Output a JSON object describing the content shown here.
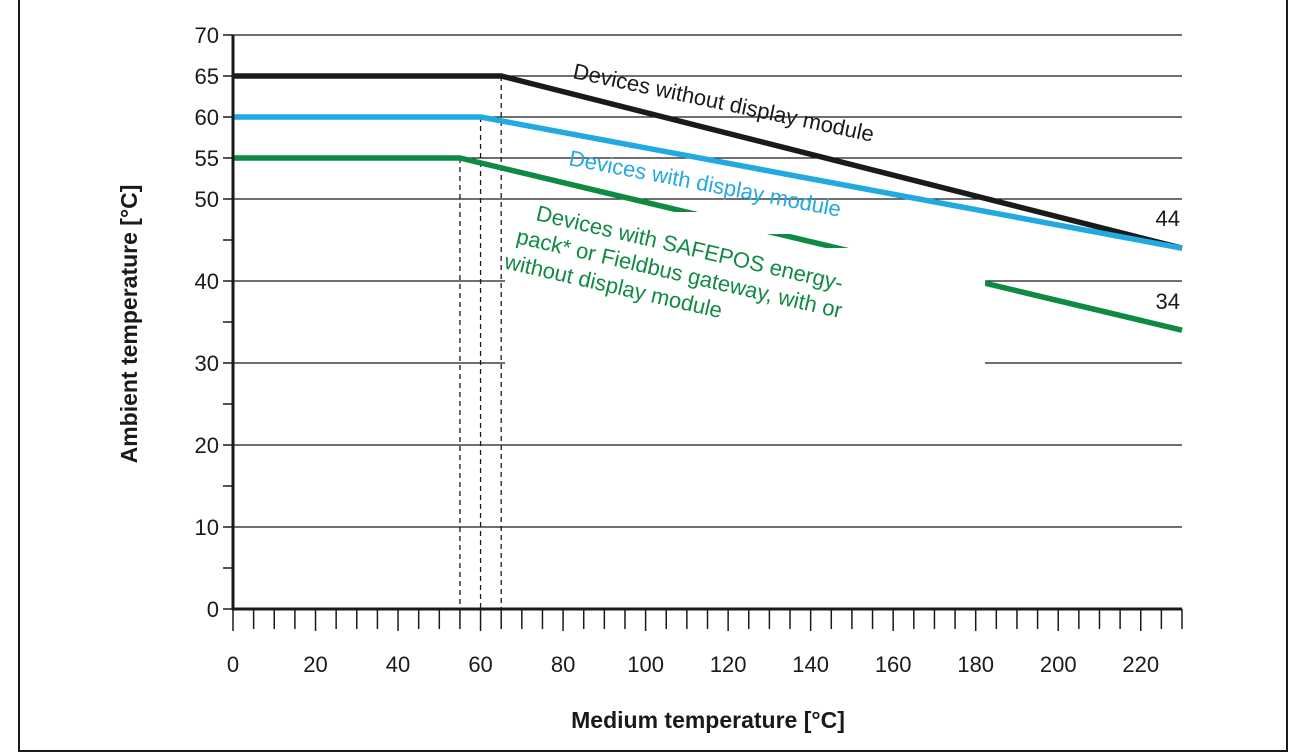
{
  "chart_data": {
    "type": "line",
    "title": "",
    "xlabel": "Medium temperature [°C]",
    "ylabel": "Ambient temperature [°C]",
    "xlim": [
      0,
      230
    ],
    "ylim": [
      0,
      70
    ],
    "x_ticks": [
      0,
      20,
      40,
      60,
      80,
      100,
      120,
      140,
      160,
      180,
      200,
      220
    ],
    "y_ticks": [
      0,
      10,
      20,
      30,
      40,
      50,
      55,
      60,
      65,
      70
    ],
    "grid": "horizontal",
    "series": [
      {
        "name": "Devices without display module",
        "color": "#1a1a1a",
        "x": [
          0,
          65,
          230
        ],
        "y": [
          65,
          65,
          44
        ]
      },
      {
        "name": "Devices with display module",
        "color": "#22a9e1",
        "x": [
          0,
          60,
          230
        ],
        "y": [
          60,
          60,
          44
        ]
      },
      {
        "name": "Devices with SAFEPOS energy-pack* or Fieldbus gateway, with or without display module",
        "color": "#0f8a43",
        "x": [
          0,
          55,
          230
        ],
        "y": [
          55,
          55,
          34
        ]
      }
    ],
    "series_label_lines": [
      [
        "Devices without display module"
      ],
      [
        "Devices with display module"
      ],
      [
        "Devices with SAFEPOS energy-",
        "pack* or Fieldbus gateway, with or",
        "without display module"
      ]
    ],
    "end_labels": [
      "44",
      "34"
    ],
    "reference_lines_x": [
      55,
      60,
      65
    ]
  }
}
